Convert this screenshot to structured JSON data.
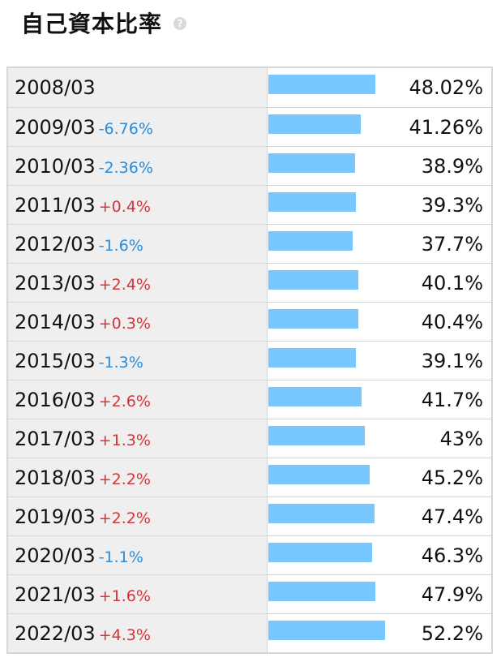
{
  "header": {
    "title": "自己資本比率",
    "help_icon": "help-icon",
    "help_glyph": "?"
  },
  "colors": {
    "bar": "#78c8ff",
    "positive_change": "#d6333b",
    "negative_change": "#2a8cd8",
    "year_cell_bg": "#efefef",
    "border": "#d6d6d6"
  },
  "chart_data": {
    "type": "bar",
    "orientation": "horizontal",
    "categories": [
      "2008/03",
      "2009/03",
      "2010/03",
      "2011/03",
      "2012/03",
      "2013/03",
      "2014/03",
      "2015/03",
      "2016/03",
      "2017/03",
      "2018/03",
      "2019/03",
      "2020/03",
      "2021/03",
      "2022/03"
    ],
    "values": [
      48.02,
      41.26,
      38.9,
      39.3,
      37.7,
      40.1,
      40.4,
      39.1,
      41.7,
      43,
      45.2,
      47.4,
      46.3,
      47.9,
      52.2
    ],
    "value_labels": [
      "48.02%",
      "41.26%",
      "38.9%",
      "39.3%",
      "37.7%",
      "40.1%",
      "40.4%",
      "39.1%",
      "41.7%",
      "43%",
      "45.2%",
      "47.4%",
      "46.3%",
      "47.9%",
      "52.2%"
    ],
    "changes": [
      "",
      "-6.76%",
      "-2.36%",
      "+0.4%",
      "-1.6%",
      "+2.4%",
      "+0.3%",
      "-1.3%",
      "+2.6%",
      "+1.3%",
      "+2.2%",
      "+2.2%",
      "-1.1%",
      "+1.6%",
      "+4.3%"
    ],
    "title": "自己資本比率",
    "xlabel": "",
    "ylabel": "",
    "grid": false,
    "legend": "none"
  }
}
